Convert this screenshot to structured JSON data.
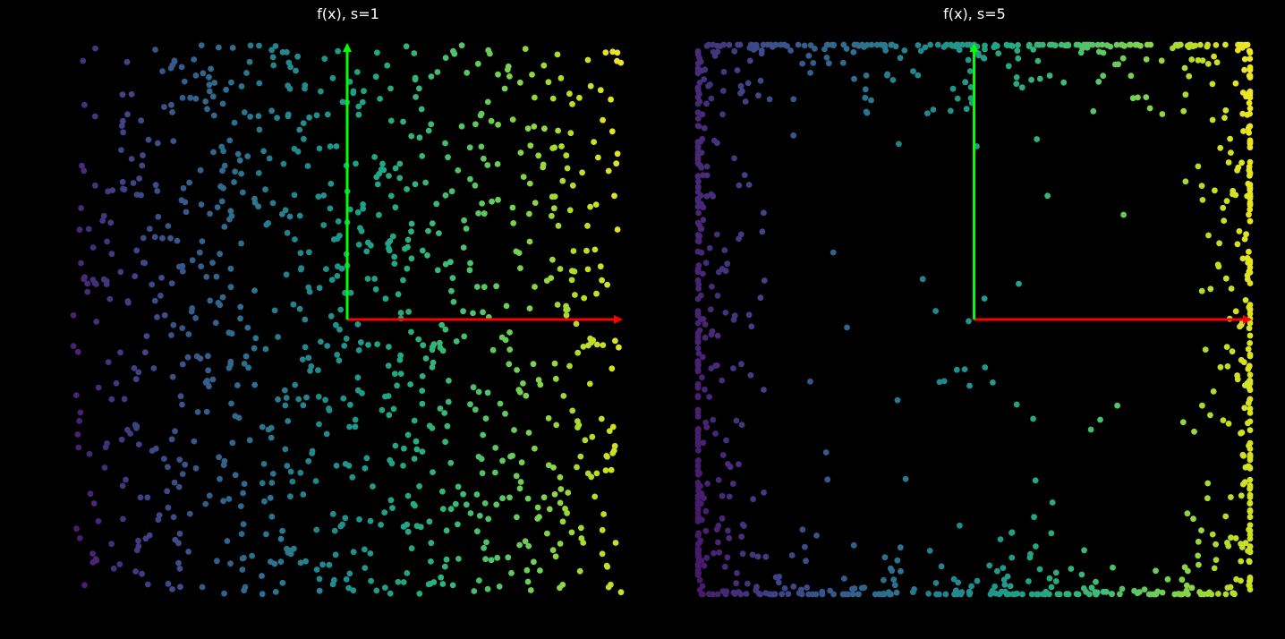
{
  "chart_data": [
    {
      "type": "scatter",
      "title": "f(x), s=1",
      "xlabel": "",
      "ylabel": "",
      "xlim": [
        -1,
        1
      ],
      "ylim": [
        -1,
        1
      ],
      "grid": false,
      "colormap": "viridis",
      "color_by": "x",
      "axes_visible": false,
      "background": "#000000",
      "arrows": [
        {
          "from": [
            0,
            0
          ],
          "to": [
            1,
            0
          ],
          "color": "#ff0000"
        },
        {
          "from": [
            0,
            0
          ],
          "to": [
            0,
            1
          ],
          "color": "#00ff00"
        }
      ],
      "distribution": "uniform",
      "approx_point_count": 1000
    },
    {
      "type": "scatter",
      "title": "f(x), s=5",
      "xlabel": "",
      "ylabel": "",
      "xlim": [
        -1,
        1
      ],
      "ylim": [
        -1,
        1
      ],
      "grid": false,
      "colormap": "viridis",
      "color_by": "x",
      "axes_visible": false,
      "background": "#000000",
      "arrows": [
        {
          "from": [
            0,
            0
          ],
          "to": [
            1,
            0
          ],
          "color": "#ff0000"
        },
        {
          "from": [
            0,
            0
          ],
          "to": [
            0,
            1
          ],
          "color": "#00ff00"
        }
      ],
      "distribution": "clustered on boundary",
      "approx_point_count": 1000
    }
  ]
}
